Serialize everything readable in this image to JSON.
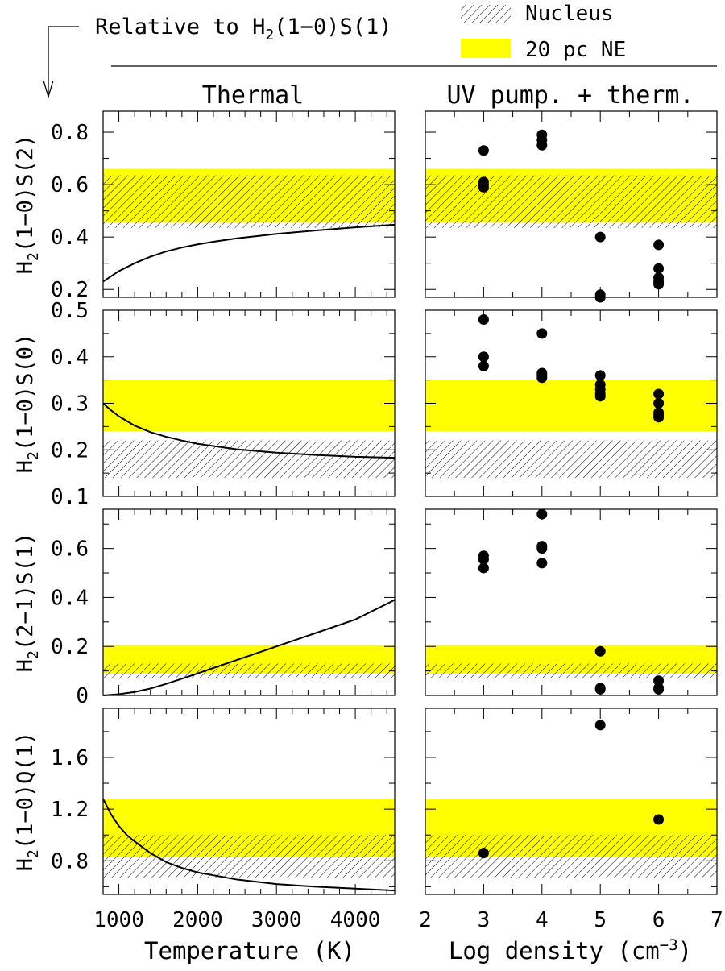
{
  "header": {
    "title_prefix": "Relative to H",
    "title_sub": "2",
    "title_suffix": "(1−0)S(1)"
  },
  "legend": [
    {
      "label": "Nucleus",
      "style": "hatch",
      "color": "#000000"
    },
    {
      "label": "20 pc NE",
      "style": "fill",
      "color": "#ffff00"
    }
  ],
  "columns": [
    {
      "title": "Thermal",
      "xlabel": "Temperature (K)",
      "xticks": [
        1000,
        2000,
        3000,
        4000
      ],
      "xlim": [
        800,
        4500
      ]
    },
    {
      "title": "UV pump. + therm.",
      "xlabel_main": "Log density (cm",
      "xlabel_sup": "−3",
      "xlabel_end": ")",
      "xticks": [
        2,
        3,
        4,
        5,
        6,
        7
      ],
      "xlim": [
        2,
        7
      ]
    }
  ],
  "chart_data": [
    {
      "type": "line",
      "row": 0,
      "col": 0,
      "ylabel": "H2(1−0)S(2)",
      "ylabel_parts": [
        "H",
        "2",
        "(1−0)S(2)"
      ],
      "xlim": [
        800,
        4500
      ],
      "ylim": [
        0.17,
        0.88
      ],
      "yticks": [
        0.2,
        0.4,
        0.6,
        0.8
      ],
      "bands": {
        "nucleus": [
          0.435,
          0.635
        ],
        "ne20pc": [
          0.455,
          0.66
        ]
      },
      "series": [
        {
          "x": [
            800,
            900,
            1000,
            1200,
            1400,
            1600,
            1800,
            2000,
            2200,
            2500,
            2800,
            3000,
            3500,
            4000,
            4500
          ],
          "y": [
            0.23,
            0.25,
            0.27,
            0.3,
            0.325,
            0.345,
            0.36,
            0.372,
            0.382,
            0.395,
            0.405,
            0.412,
            0.425,
            0.437,
            0.447
          ]
        }
      ]
    },
    {
      "type": "line",
      "row": 1,
      "col": 0,
      "ylabel": "H2(1−0)S(0)",
      "ylabel_parts": [
        "H",
        "2",
        "(1−0)S(0)"
      ],
      "xlim": [
        800,
        4500
      ],
      "ylim": [
        0.1,
        0.5
      ],
      "yticks": [
        0.1,
        0.2,
        0.3,
        0.4,
        0.5
      ],
      "bands": {
        "nucleus": [
          0.14,
          0.22
        ],
        "ne20pc": [
          0.24,
          0.35
        ]
      },
      "series": [
        {
          "x": [
            800,
            900,
            1000,
            1200,
            1400,
            1600,
            1800,
            2000,
            2500,
            3000,
            3500,
            4000,
            4500
          ],
          "y": [
            0.3,
            0.285,
            0.272,
            0.252,
            0.238,
            0.228,
            0.22,
            0.213,
            0.201,
            0.194,
            0.189,
            0.185,
            0.183
          ]
        }
      ]
    },
    {
      "type": "line",
      "row": 2,
      "col": 0,
      "ylabel": "H2(2−1)S(1)",
      "ylabel_parts": [
        "H",
        "2",
        "(2−1)S(1)"
      ],
      "xlim": [
        800,
        4500
      ],
      "ylim": [
        0,
        0.76
      ],
      "yticks": [
        0,
        0.2,
        0.4,
        0.6
      ],
      "bands": {
        "nucleus": [
          0.07,
          0.13
        ],
        "ne20pc": [
          0.09,
          0.205
        ]
      },
      "series": [
        {
          "x": [
            800,
            1000,
            1200,
            1400,
            1600,
            1800,
            2000,
            2200,
            2500,
            3000,
            3500,
            4000,
            4500
          ],
          "y": [
            0.0,
            0.005,
            0.014,
            0.028,
            0.047,
            0.068,
            0.09,
            0.112,
            0.145,
            0.2,
            0.255,
            0.31,
            0.39
          ]
        }
      ]
    },
    {
      "type": "line",
      "row": 3,
      "col": 0,
      "ylabel": "H2(1−0)Q(1)",
      "ylabel_parts": [
        "H",
        "2",
        "(1−0)Q(1)"
      ],
      "xlim": [
        800,
        4500
      ],
      "ylim": [
        0.54,
        1.98
      ],
      "yticks": [
        0.8,
        1.2,
        1.6
      ],
      "bands": {
        "nucleus": [
          0.67,
          1.0
        ],
        "ne20pc": [
          0.83,
          1.28
        ]
      },
      "series": [
        {
          "x": [
            800,
            900,
            1000,
            1100,
            1200,
            1400,
            1600,
            1800,
            2000,
            2500,
            3000,
            3500,
            4000,
            4500
          ],
          "y": [
            1.28,
            1.16,
            1.07,
            1.0,
            0.95,
            0.86,
            0.79,
            0.745,
            0.71,
            0.655,
            0.62,
            0.6,
            0.585,
            0.57
          ]
        }
      ]
    },
    {
      "type": "scatter",
      "row": 0,
      "col": 1,
      "xlim": [
        2,
        7
      ],
      "ylim": [
        0.17,
        0.88
      ],
      "bands": {
        "nucleus": [
          0.435,
          0.635
        ],
        "ne20pc": [
          0.455,
          0.66
        ]
      },
      "x": [
        3,
        3,
        3,
        3,
        4,
        4,
        4,
        5,
        5,
        5,
        6,
        6,
        6,
        6,
        6
      ],
      "y": [
        0.73,
        0.61,
        0.6,
        0.59,
        0.79,
        0.77,
        0.75,
        0.4,
        0.18,
        0.17,
        0.37,
        0.28,
        0.245,
        0.23,
        0.22
      ]
    },
    {
      "type": "scatter",
      "row": 1,
      "col": 1,
      "xlim": [
        2,
        7
      ],
      "ylim": [
        0.1,
        0.5
      ],
      "bands": {
        "nucleus": [
          0.14,
          0.22
        ],
        "ne20pc": [
          0.24,
          0.35
        ]
      },
      "x": [
        3,
        3,
        3,
        4,
        4,
        4,
        4,
        5,
        5,
        5,
        5,
        5,
        6,
        6,
        6,
        6,
        6
      ],
      "y": [
        0.48,
        0.4,
        0.38,
        0.45,
        0.365,
        0.36,
        0.355,
        0.36,
        0.34,
        0.33,
        0.32,
        0.315,
        0.32,
        0.3,
        0.28,
        0.275,
        0.27
      ]
    },
    {
      "type": "scatter",
      "row": 2,
      "col": 1,
      "xlim": [
        2,
        7
      ],
      "ylim": [
        0,
        0.76
      ],
      "bands": {
        "nucleus": [
          0.07,
          0.13
        ],
        "ne20pc": [
          0.09,
          0.205
        ]
      },
      "x": [
        3,
        3,
        3,
        4,
        4,
        4,
        4,
        5,
        5,
        5,
        6,
        6,
        6
      ],
      "y": [
        0.57,
        0.555,
        0.52,
        0.74,
        0.61,
        0.6,
        0.54,
        0.18,
        0.03,
        0.025,
        0.06,
        0.03,
        0.025
      ]
    },
    {
      "type": "scatter",
      "row": 3,
      "col": 1,
      "xlim": [
        2,
        7
      ],
      "ylim": [
        0.54,
        1.98
      ],
      "bands": {
        "nucleus": [
          0.67,
          1.0
        ],
        "ne20pc": [
          0.83,
          1.28
        ]
      },
      "x": [
        3,
        5,
        6
      ],
      "y": [
        0.86,
        1.85,
        1.12
      ]
    }
  ]
}
